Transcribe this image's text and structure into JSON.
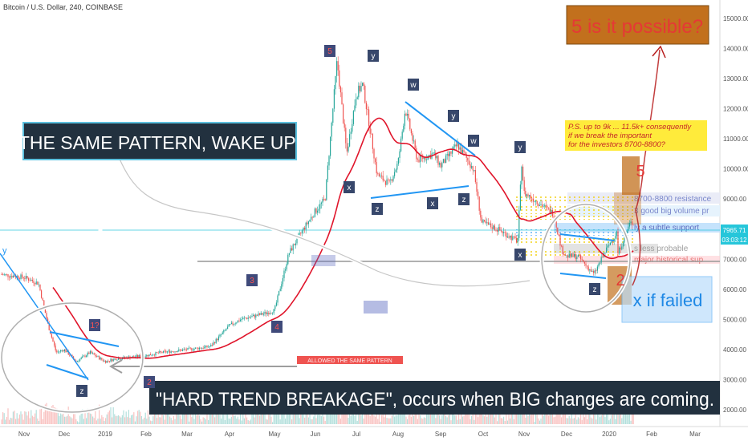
{
  "header": {
    "symbol_title": "Bitcoin / U.S. Dollar, 240, COINBASE"
  },
  "price_axis": {
    "ticks": [
      "15000.00",
      "14000.00",
      "13000.00",
      "12000.00",
      "11000.00",
      "10000.00",
      "9000.00",
      "8000.00",
      "7000.00",
      "6000.00",
      "5000.00",
      "4000.00",
      "3000.00",
      "2000.00"
    ],
    "last_price_label": "7965.71",
    "countdown_label": "03:03:12",
    "left_edge_label": "y"
  },
  "time_axis": {
    "ticks": [
      "Nov",
      "Dec",
      "2019",
      "Feb",
      "Mar",
      "Apr",
      "May",
      "Jun",
      "Jul",
      "Aug",
      "Sep",
      "Oct",
      "Nov",
      "Dec",
      "2020",
      "Feb",
      "Mar"
    ]
  },
  "annotations": {
    "same_pattern": "THE SAME PATTERN, WAKE UP!",
    "hard_trend": "\"HARD TREND BREAKAGE\", occurs when BIG changes are coming.",
    "five_possible": "5 is it possible?",
    "ps_note": "P.S. up to 9k ... 11.5k+ consequently\nif we break the important\nfor the investors 8700-8800?",
    "x_if_failed": "x if failed",
    "red_five_big": "5",
    "red_two_big": "2",
    "faded_label_1": "8700-8800 resistance",
    "faded_label_2": "3 good big volume pr",
    "faded_label_3": "ly a subtle support",
    "faded_label_4": "s less probable",
    "faded_label_5": "major historical sup",
    "red_small_label": "ALLOWED THE SAME PATTERN"
  },
  "wave_labels": [
    {
      "t": "y",
      "kind": "blue"
    },
    {
      "t": "1?",
      "kind": "red"
    },
    {
      "t": "z",
      "kind": "blue"
    },
    {
      "t": "2",
      "kind": "red"
    },
    {
      "t": "3",
      "kind": "red"
    },
    {
      "t": "4",
      "kind": "red"
    },
    {
      "t": "5",
      "kind": "red"
    },
    {
      "t": "y",
      "kind": "blue"
    },
    {
      "t": "x",
      "kind": "blue"
    },
    {
      "t": "w",
      "kind": "blue"
    },
    {
      "t": "y",
      "kind": "blue"
    },
    {
      "t": "w",
      "kind": "blue"
    },
    {
      "t": "z",
      "kind": "blue"
    },
    {
      "t": "x",
      "kind": "blue"
    },
    {
      "t": "z",
      "kind": "blue"
    },
    {
      "t": "y",
      "kind": "blue"
    },
    {
      "t": "x",
      "kind": "blue"
    },
    {
      "t": "z",
      "kind": "blue"
    }
  ],
  "colors": {
    "up": "#26a69a",
    "down": "#ef5350",
    "trendline": "#2196f3",
    "ma": "#e0152b",
    "note_bg": "#ffeb3b",
    "box_orange": "#c2701d"
  },
  "chart_data": {
    "type": "candlestick",
    "title": "Bitcoin / U.S. Dollar, 240, COINBASE",
    "xlabel": "",
    "ylabel": "",
    "y_axis_position": "right",
    "ylim": [
      1500,
      15800
    ],
    "x_ticks": [
      "Nov",
      "Dec",
      "2019",
      "Feb",
      "Mar",
      "Apr",
      "May",
      "Jun",
      "Jul",
      "Aug",
      "Sep",
      "Oct",
      "Nov",
      "Dec",
      "2020",
      "Feb",
      "Mar"
    ],
    "approx_close_path": [
      {
        "month": "Nov 2018",
        "close": 6400
      },
      {
        "month": "Dec 2018",
        "close": 4000
      },
      {
        "month": "Jan 2019",
        "close": 3600
      },
      {
        "month": "Feb 2019",
        "close": 3800
      },
      {
        "month": "Mar 2019",
        "close": 4000
      },
      {
        "month": "Apr 2019",
        "close": 4800
      },
      {
        "month": "May 2019",
        "close": 5300
      },
      {
        "month": "Jun 2019",
        "close": 8600
      },
      {
        "month": "Jul 2019",
        "close": 12500
      },
      {
        "month": "Aug 2019",
        "close": 10200
      },
      {
        "month": "Sep 2019",
        "close": 10100
      },
      {
        "month": "Oct 2019",
        "close": 8200
      },
      {
        "month": "Nov 2019",
        "close": 9200
      },
      {
        "month": "Dec 2019",
        "close": 7100
      },
      {
        "month": "Jan 2020",
        "close": 7965.71
      }
    ],
    "last_price": 7965.71,
    "grid": false,
    "legend": "none"
  }
}
